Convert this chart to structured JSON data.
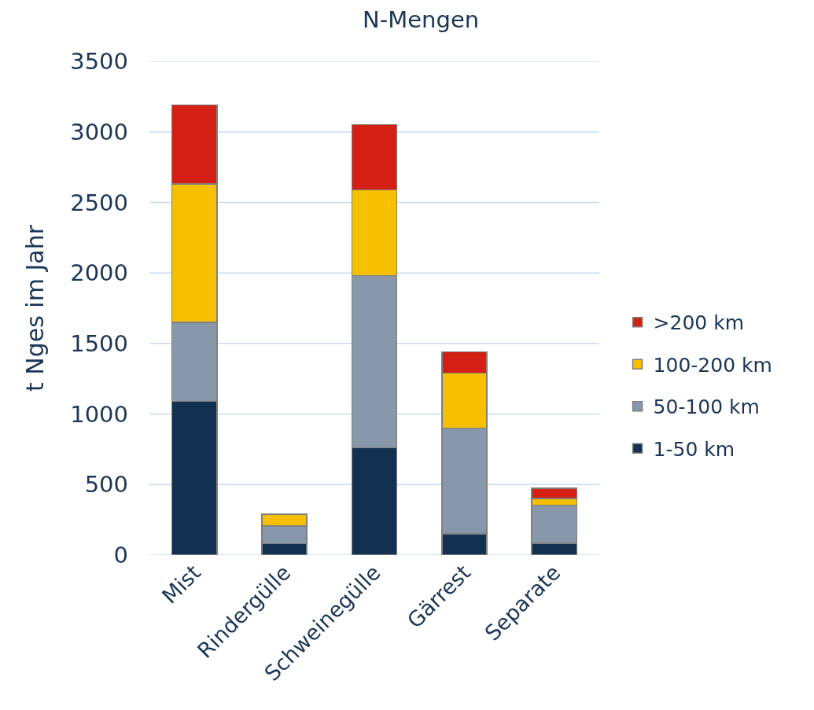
{
  "chart_data": {
    "type": "bar",
    "title": "N-Mengen",
    "ylabel": "t Nges im Jahr",
    "categories": [
      "Mist",
      "Rindergülle",
      "Schweinegülle",
      "Gärrest",
      "Separate"
    ],
    "series": [
      {
        "name": "1-50 km",
        "color": "#12304f",
        "values": [
          1090,
          80,
          760,
          150,
          85
        ]
      },
      {
        "name": "50-100 km",
        "color": "#8898aa",
        "values": [
          560,
          125,
          1220,
          750,
          270
        ]
      },
      {
        "name": "100-200 km",
        "color": "#f5c000",
        "values": [
          980,
          85,
          610,
          390,
          45
        ]
      },
      {
        "name": ">200 km",
        "color": "#d31f14",
        "values": [
          560,
          null,
          460,
          150,
          75
        ]
      }
    ],
    "stacked": true,
    "ylim": [
      0,
      3500
    ],
    "yticks": [
      0,
      500,
      1000,
      1500,
      2000,
      2500,
      3000,
      3500
    ],
    "grid": "y",
    "legend": "right"
  }
}
